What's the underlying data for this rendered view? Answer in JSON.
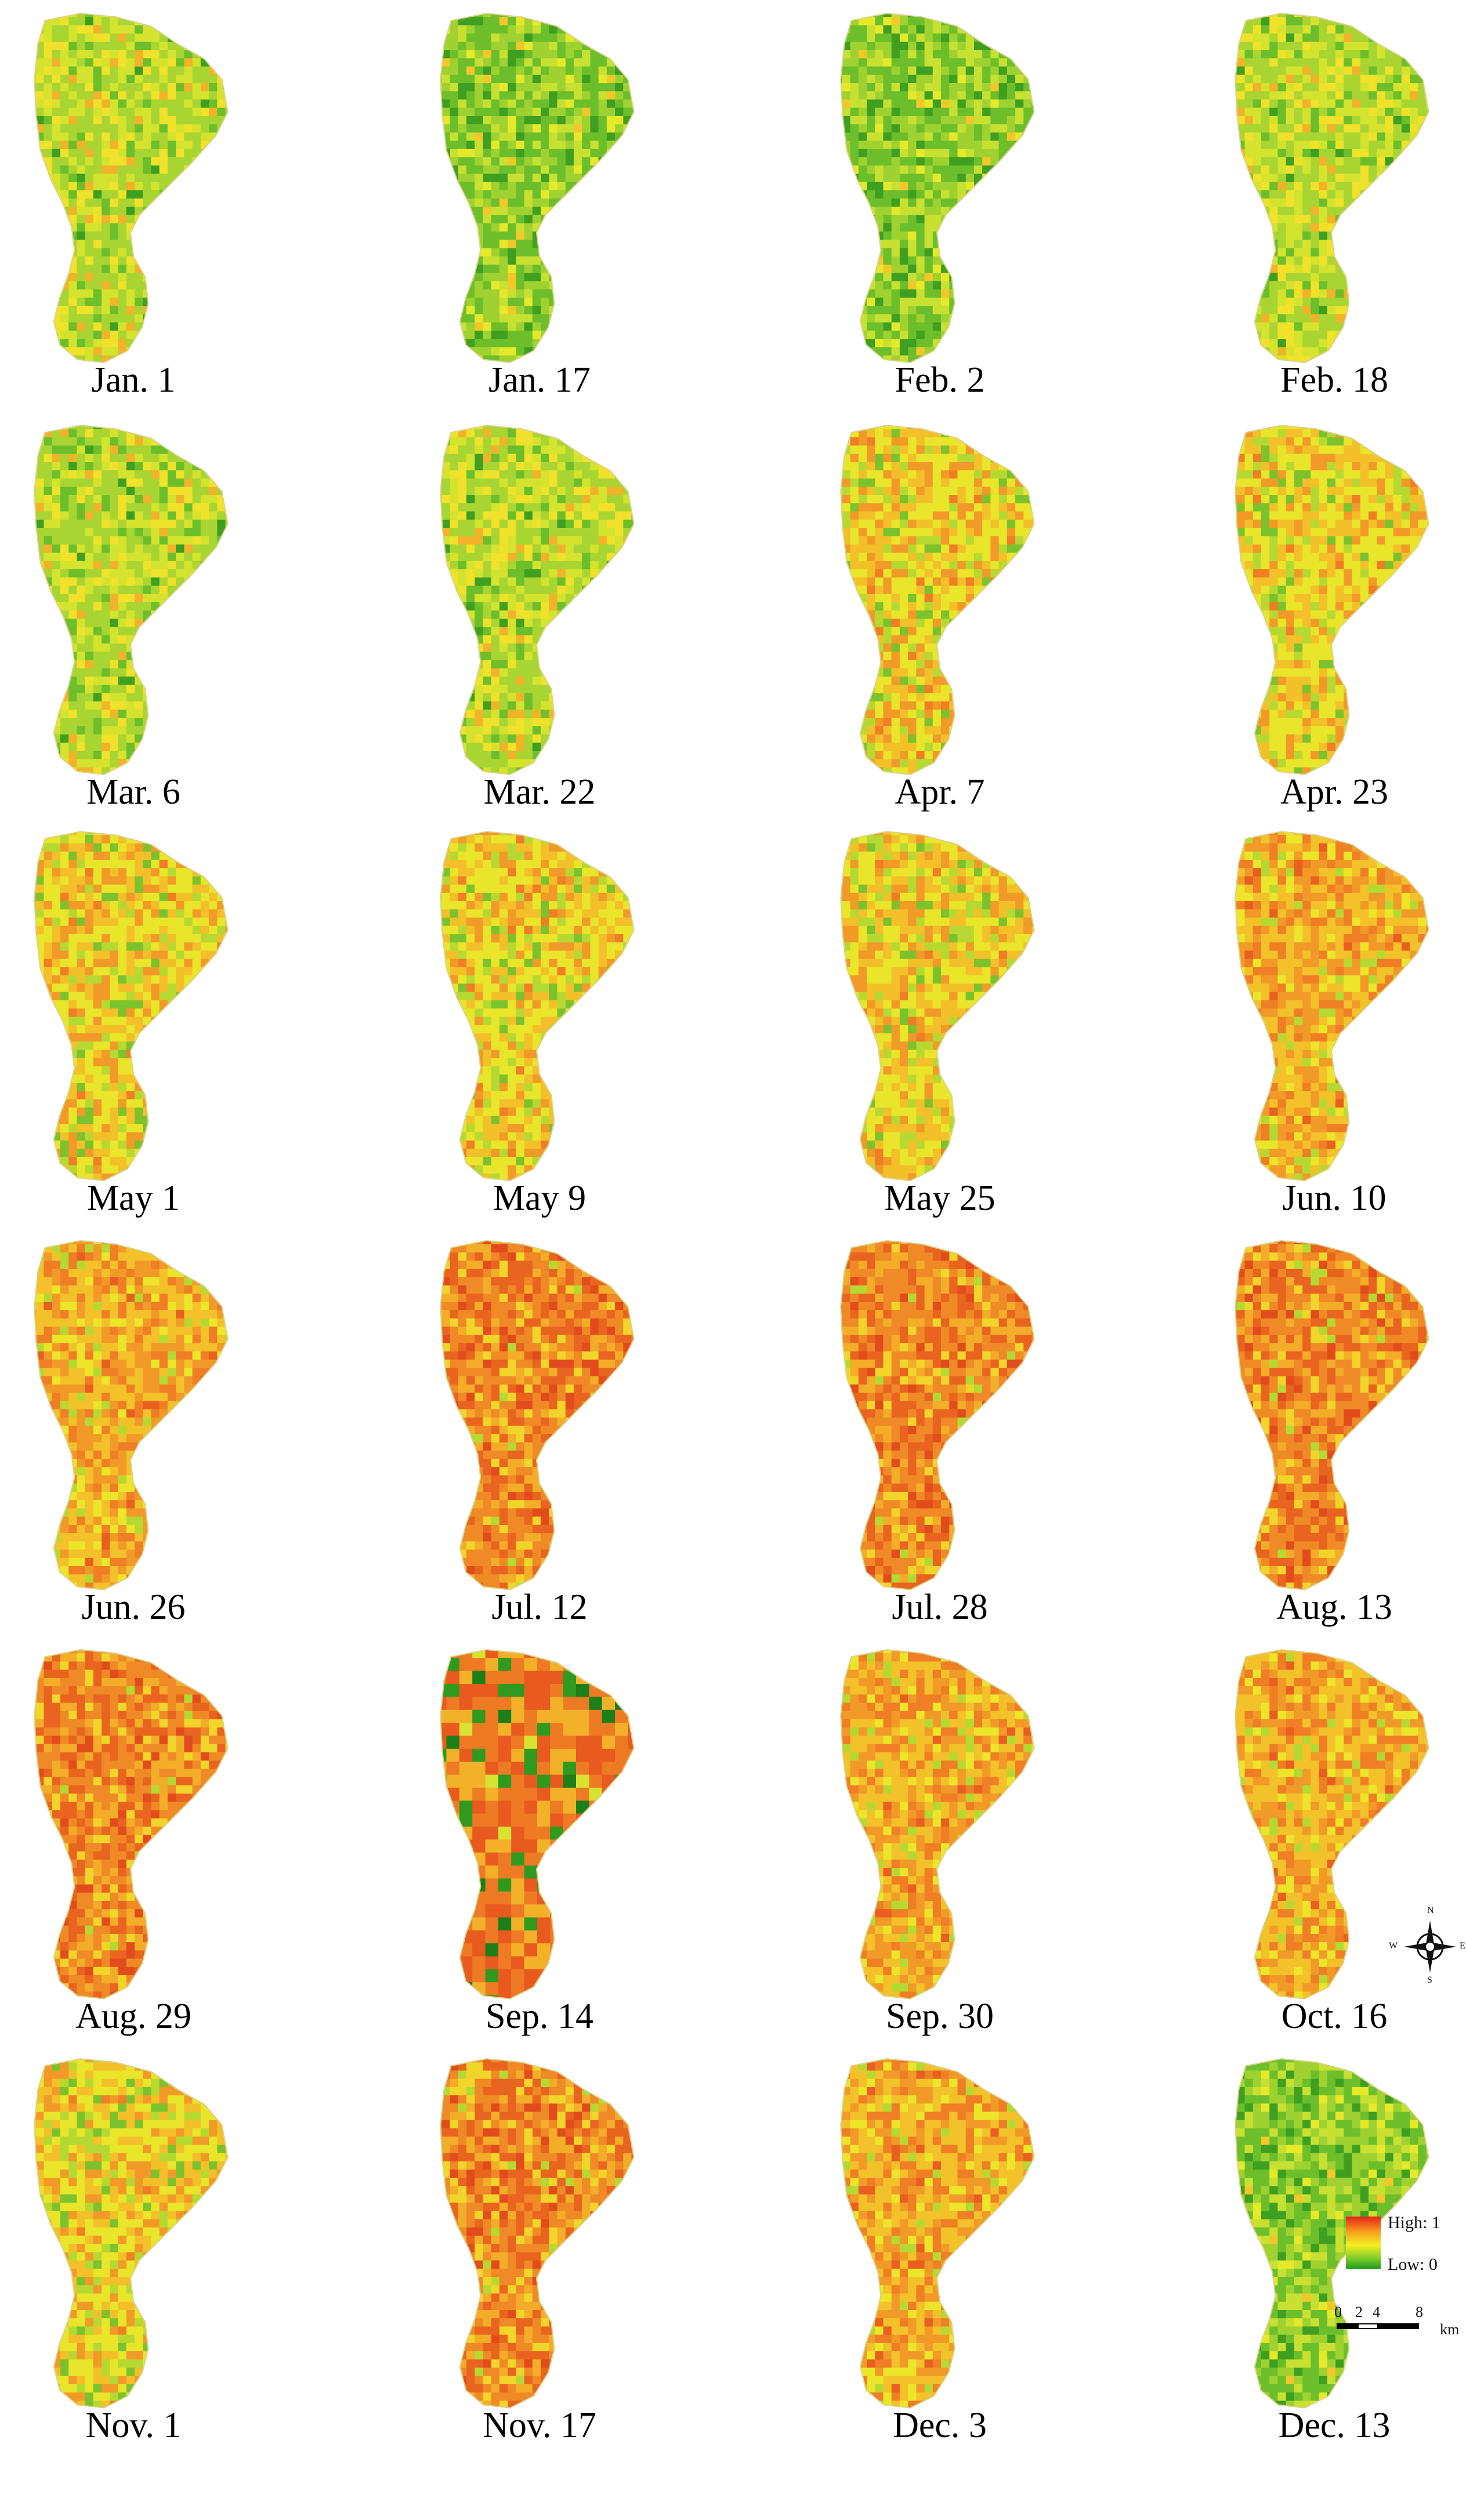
{
  "figure": {
    "panels": [
      {
        "date": "Jan. 1",
        "tone": "mixed-green"
      },
      {
        "date": "Jan. 17",
        "tone": "green"
      },
      {
        "date": "Feb. 2",
        "tone": "green"
      },
      {
        "date": "Feb. 18",
        "tone": "mixed-green"
      },
      {
        "date": "Mar. 6",
        "tone": "mixed-green"
      },
      {
        "date": "Mar. 22",
        "tone": "mixed-green"
      },
      {
        "date": "Apr. 7",
        "tone": "mixed"
      },
      {
        "date": "Apr. 23",
        "tone": "mixed"
      },
      {
        "date": "May 1",
        "tone": "mixed"
      },
      {
        "date": "May 9",
        "tone": "mixed"
      },
      {
        "date": "May 25",
        "tone": "mixed"
      },
      {
        "date": "Jun. 10",
        "tone": "warm"
      },
      {
        "date": "Jun. 26",
        "tone": "warm"
      },
      {
        "date": "Jul. 12",
        "tone": "hot"
      },
      {
        "date": "Jul. 28",
        "tone": "hot"
      },
      {
        "date": "Aug. 13",
        "tone": "hot"
      },
      {
        "date": "Aug. 29",
        "tone": "hot"
      },
      {
        "date": "Sep. 14",
        "tone": "patchy"
      },
      {
        "date": "Sep. 30",
        "tone": "warm"
      },
      {
        "date": "Oct. 16",
        "tone": "warm"
      },
      {
        "date": "Nov. 1",
        "tone": "mixed"
      },
      {
        "date": "Nov. 17",
        "tone": "hot"
      },
      {
        "date": "Dec. 3",
        "tone": "warm"
      },
      {
        "date": "Dec. 13",
        "tone": "green"
      }
    ],
    "columns": 4,
    "rows": 6
  },
  "legend": {
    "high_label": "High: 1",
    "low_label": "Low: 0",
    "high_color": "#e8211a",
    "mid_color": "#f4ee22",
    "low_color": "#1f9a1c"
  },
  "scalebar": {
    "ticks": [
      "0",
      "2",
      "4",
      "8"
    ],
    "unit": "km"
  },
  "compass": {
    "north": "N",
    "south": "S",
    "east": "E",
    "west": "W",
    "icon": "compass-rose-icon"
  },
  "palettes": {
    "green": [
      "#6cbf2a",
      "#9fd230",
      "#c8e032",
      "#3f9f20",
      "#e6e92a",
      "#f1c72a"
    ],
    "mixed-green": [
      "#a9d532",
      "#d3e32e",
      "#f0e12a",
      "#6cbf2a",
      "#f2b22a",
      "#3f9f20"
    ],
    "mixed": [
      "#e9e52a",
      "#f3c02a",
      "#f29a28",
      "#b6d932",
      "#7cc22c",
      "#ef7e24"
    ],
    "warm": [
      "#f3c12a",
      "#f29a28",
      "#ef7e24",
      "#ece52a",
      "#b6d932",
      "#e85f20"
    ],
    "hot": [
      "#ef8a26",
      "#e9641f",
      "#f3ad29",
      "#f2d52a",
      "#e24c1c",
      "#b6d932"
    ],
    "patchy": [
      "#ee7a24",
      "#e85a1e",
      "#f3b12a",
      "#2f9a1e",
      "#1d7f18",
      "#d8e230"
    ]
  }
}
